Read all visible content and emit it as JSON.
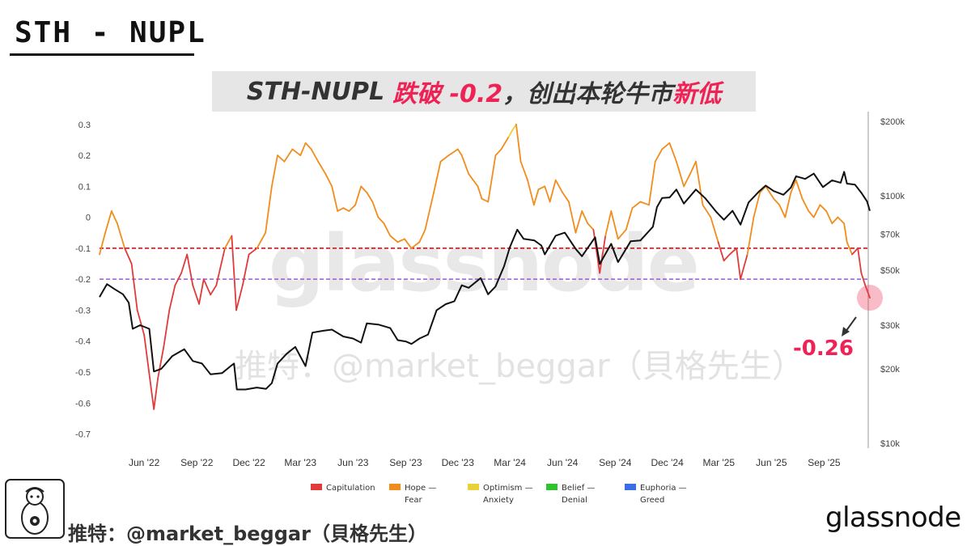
{
  "handwritten_title": "STH - NUPL",
  "banner": {
    "part1": "STH-NUPL",
    "part2": "跌破 -0.2",
    "part3": "，创出本轮牛市",
    "part4": "新低"
  },
  "watermark": {
    "logo_text": "glassnode",
    "handle_text": "推特：@market_beggar（貝格先生）"
  },
  "annotation": {
    "value_label": "-0.26"
  },
  "footer": {
    "credit": "推特：@market_beggar（貝格先生）",
    "brand": "glassnode"
  },
  "colors": {
    "capitulation": "#e03a3a",
    "hope_fear": "#f28c1c",
    "optimism_anxiety": "#e8d23a",
    "belief_denial": "#2ec42e",
    "euphoria_greed": "#3a6ee8",
    "price": "#111111",
    "threshold_red": "#cc0000",
    "threshold_purple": "#9b59d0",
    "accent": "#ee2255"
  },
  "chart_data": {
    "type": "line",
    "left_axis": {
      "ticks": [
        0.3,
        0.2,
        0.1,
        0,
        -0.1,
        -0.2,
        -0.3,
        -0.4,
        -0.5,
        -0.6,
        -0.7
      ],
      "tick_labels": [
        "0.3",
        "0.2",
        "0.1",
        "0",
        "-0.1",
        "-0.2",
        "-0.3",
        "-0.4",
        "-0.5",
        "-0.6",
        "-0.7"
      ],
      "ylim": [
        -0.73,
        0.31
      ]
    },
    "right_axis": {
      "scale": "log",
      "ticks": [
        200000,
        100000,
        70000,
        50000,
        30000,
        20000,
        10000
      ],
      "tick_labels": [
        "$200k",
        "$100k",
        "$70k",
        "$50k",
        "$30k",
        "$20k",
        "$10k"
      ],
      "ylim": [
        10000,
        200000
      ]
    },
    "x_axis": {
      "range": [
        "2022-03-15",
        "2025-11-20"
      ],
      "ticks": [
        "2022-06-01",
        "2022-09-01",
        "2022-12-01",
        "2023-03-01",
        "2023-06-01",
        "2023-09-01",
        "2023-12-01",
        "2024-03-01",
        "2024-06-01",
        "2024-09-01",
        "2024-12-01",
        "2025-03-01",
        "2025-06-01",
        "2025-09-01"
      ],
      "tick_labels": [
        "Jun '22",
        "Sep '22",
        "Dec '22",
        "Mar '23",
        "Jun '23",
        "Sep '23",
        "Dec '23",
        "Mar '24",
        "Jun '24",
        "Sep '24",
        "Dec '24",
        "Mar '25",
        "Jun '25",
        "Sep '25"
      ]
    },
    "thresholds": [
      {
        "value": -0.1,
        "color": "#cc0000",
        "style": "dashed"
      },
      {
        "value": -0.2,
        "color": "#9b59d0",
        "style": "dashed"
      }
    ],
    "legend": [
      {
        "label_line1": "Capitulation",
        "label_line2": "",
        "color": "#e03a3a"
      },
      {
        "label_line1": "Hope —",
        "label_line2": "Fear",
        "color": "#f28c1c"
      },
      {
        "label_line1": "Optimism —",
        "label_line2": "Anxiety",
        "color": "#e8d23a"
      },
      {
        "label_line1": "Belief —",
        "label_line2": "Denial",
        "color": "#2ec42e"
      },
      {
        "label_line1": "Euphoria —",
        "label_line2": "Greed",
        "color": "#3a6ee8"
      }
    ],
    "series": [
      {
        "key": "sth_nupl",
        "x": [
          "2022-03-15",
          "2022-03-25",
          "2022-04-05",
          "2022-04-15",
          "2022-04-28",
          "2022-05-10",
          "2022-05-20",
          "2022-06-01",
          "2022-06-13",
          "2022-06-18",
          "2022-06-25",
          "2022-07-05",
          "2022-07-15",
          "2022-07-25",
          "2022-08-05",
          "2022-08-15",
          "2022-08-25",
          "2022-09-05",
          "2022-09-13",
          "2022-09-25",
          "2022-10-05",
          "2022-10-20",
          "2022-11-01",
          "2022-11-09",
          "2022-11-20",
          "2022-12-01",
          "2022-12-15",
          "2022-12-30",
          "2023-01-10",
          "2023-01-20",
          "2023-02-01",
          "2023-02-15",
          "2023-03-01",
          "2023-03-10",
          "2023-03-20",
          "2023-04-01",
          "2023-04-14",
          "2023-04-25",
          "2023-05-05",
          "2023-05-15",
          "2023-05-25",
          "2023-06-05",
          "2023-06-15",
          "2023-06-25",
          "2023-07-05",
          "2023-07-15",
          "2023-07-25",
          "2023-08-05",
          "2023-08-18",
          "2023-08-30",
          "2023-09-11",
          "2023-09-25",
          "2023-10-05",
          "2023-10-20",
          "2023-11-01",
          "2023-11-15",
          "2023-12-01",
          "2023-12-08",
          "2023-12-20",
          "2024-01-05",
          "2024-01-12",
          "2024-01-23",
          "2024-02-05",
          "2024-02-15",
          "2024-02-28",
          "2024-03-05",
          "2024-03-12",
          "2024-03-20",
          "2024-04-01",
          "2024-04-12",
          "2024-04-20",
          "2024-05-01",
          "2024-05-10",
          "2024-05-20",
          "2024-06-01",
          "2024-06-12",
          "2024-06-24",
          "2024-07-05",
          "2024-07-15",
          "2024-07-25",
          "2024-08-05",
          "2024-08-15",
          "2024-08-25",
          "2024-09-06",
          "2024-09-20",
          "2024-10-01",
          "2024-10-15",
          "2024-10-30",
          "2024-11-10",
          "2024-11-22",
          "2024-12-05",
          "2024-12-17",
          "2024-12-30",
          "2025-01-10",
          "2025-01-20",
          "2025-02-01",
          "2025-02-15",
          "2025-02-28",
          "2025-03-10",
          "2025-03-20",
          "2025-04-01",
          "2025-04-08",
          "2025-04-20",
          "2025-05-01",
          "2025-05-12",
          "2025-05-22",
          "2025-06-05",
          "2025-06-15",
          "2025-06-25",
          "2025-07-05",
          "2025-07-14",
          "2025-07-25",
          "2025-08-05",
          "2025-08-14",
          "2025-08-25",
          "2025-09-05",
          "2025-09-15",
          "2025-09-25",
          "2025-10-06",
          "2025-10-11",
          "2025-10-20",
          "2025-10-30",
          "2025-11-05",
          "2025-11-12",
          "2025-11-20"
        ],
        "values": [
          -0.12,
          -0.05,
          0.02,
          -0.02,
          -0.1,
          -0.15,
          -0.3,
          -0.38,
          -0.55,
          -0.62,
          -0.52,
          -0.42,
          -0.3,
          -0.22,
          -0.18,
          -0.12,
          -0.22,
          -0.28,
          -0.2,
          -0.25,
          -0.22,
          -0.1,
          -0.06,
          -0.3,
          -0.22,
          -0.12,
          -0.1,
          -0.05,
          0.1,
          0.2,
          0.18,
          0.22,
          0.2,
          0.24,
          0.22,
          0.18,
          0.14,
          0.1,
          0.02,
          0.03,
          0.02,
          0.04,
          0.1,
          0.08,
          0.05,
          0.0,
          -0.02,
          -0.06,
          -0.08,
          -0.07,
          -0.1,
          -0.08,
          -0.04,
          0.08,
          0.18,
          0.2,
          0.22,
          0.2,
          0.14,
          0.1,
          0.06,
          0.05,
          0.2,
          0.22,
          0.26,
          0.28,
          0.3,
          0.18,
          0.12,
          0.04,
          0.09,
          0.1,
          0.05,
          0.12,
          0.08,
          0.05,
          -0.05,
          0.02,
          -0.02,
          -0.04,
          -0.18,
          -0.06,
          0.02,
          -0.07,
          -0.04,
          0.03,
          0.05,
          0.04,
          0.18,
          0.22,
          0.24,
          0.18,
          0.1,
          0.14,
          0.18,
          0.04,
          0.0,
          -0.08,
          -0.14,
          -0.12,
          -0.1,
          -0.2,
          -0.12,
          0.0,
          0.08,
          0.1,
          0.06,
          0.04,
          0.0,
          0.08,
          0.12,
          0.06,
          0.02,
          0.0,
          0.04,
          0.02,
          -0.02,
          0.0,
          -0.02,
          -0.08,
          -0.12,
          -0.1,
          -0.18,
          -0.22,
          -0.26
        ]
      },
      {
        "key": "btc_price",
        "x": [
          "2022-03-15",
          "2022-03-28",
          "2022-04-10",
          "2022-04-25",
          "2022-05-05",
          "2022-05-12",
          "2022-05-25",
          "2022-06-10",
          "2022-06-18",
          "2022-07-01",
          "2022-07-20",
          "2022-08-10",
          "2022-08-25",
          "2022-09-10",
          "2022-09-25",
          "2022-10-15",
          "2022-10-30",
          "2022-11-05",
          "2022-11-10",
          "2022-11-25",
          "2022-12-15",
          "2022-12-31",
          "2023-01-10",
          "2023-01-20",
          "2023-02-05",
          "2023-02-20",
          "2023-03-10",
          "2023-03-22",
          "2023-04-10",
          "2023-04-25",
          "2023-05-15",
          "2023-06-01",
          "2023-06-15",
          "2023-06-25",
          "2023-07-15",
          "2023-08-05",
          "2023-08-18",
          "2023-09-01",
          "2023-09-11",
          "2023-09-25",
          "2023-10-10",
          "2023-10-25",
          "2023-11-10",
          "2023-11-25",
          "2023-12-08",
          "2023-12-20",
          "2024-01-10",
          "2024-01-23",
          "2024-02-05",
          "2024-02-20",
          "2024-03-01",
          "2024-03-14",
          "2024-03-25",
          "2024-04-13",
          "2024-04-25",
          "2024-05-01",
          "2024-05-20",
          "2024-06-05",
          "2024-06-24",
          "2024-07-05",
          "2024-07-28",
          "2024-08-05",
          "2024-08-25",
          "2024-09-06",
          "2024-09-28",
          "2024-10-15",
          "2024-10-30",
          "2024-11-06",
          "2024-11-13",
          "2024-11-22",
          "2024-12-05",
          "2024-12-17",
          "2024-12-30",
          "2025-01-20",
          "2025-02-05",
          "2025-02-25",
          "2025-03-10",
          "2025-03-25",
          "2025-04-08",
          "2025-04-22",
          "2025-05-10",
          "2025-05-22",
          "2025-06-05",
          "2025-06-22",
          "2025-07-05",
          "2025-07-14",
          "2025-07-30",
          "2025-08-14",
          "2025-08-30",
          "2025-09-15",
          "2025-09-30",
          "2025-10-06",
          "2025-10-11",
          "2025-10-25",
          "2025-11-05",
          "2025-11-15",
          "2025-11-20"
        ],
        "values": [
          39000,
          44000,
          42000,
          40000,
          37000,
          29000,
          30000,
          29000,
          19500,
          20000,
          22500,
          24000,
          21500,
          21000,
          19000,
          19200,
          20500,
          21000,
          16500,
          16500,
          16800,
          16600,
          17500,
          21000,
          23000,
          24500,
          20500,
          28000,
          28500,
          28800,
          27000,
          26500,
          25500,
          30500,
          30200,
          29200,
          26100,
          25800,
          25200,
          26500,
          27500,
          34500,
          36500,
          37500,
          43500,
          42500,
          46500,
          40000,
          43000,
          52000,
          62000,
          73000,
          67000,
          66000,
          63000,
          58000,
          69000,
          71000,
          61000,
          57000,
          68000,
          53000,
          64000,
          54000,
          65500,
          66000,
          72000,
          75000,
          90000,
          98000,
          98500,
          106000,
          93000,
          106000,
          98000,
          86000,
          80000,
          87000,
          76500,
          94000,
          104000,
          110000,
          104500,
          101000,
          108000,
          120000,
          117000,
          123000,
          108500,
          115500,
          113000,
          125000,
          112000,
          111000,
          103000,
          95000,
          87000
        ]
      }
    ]
  }
}
